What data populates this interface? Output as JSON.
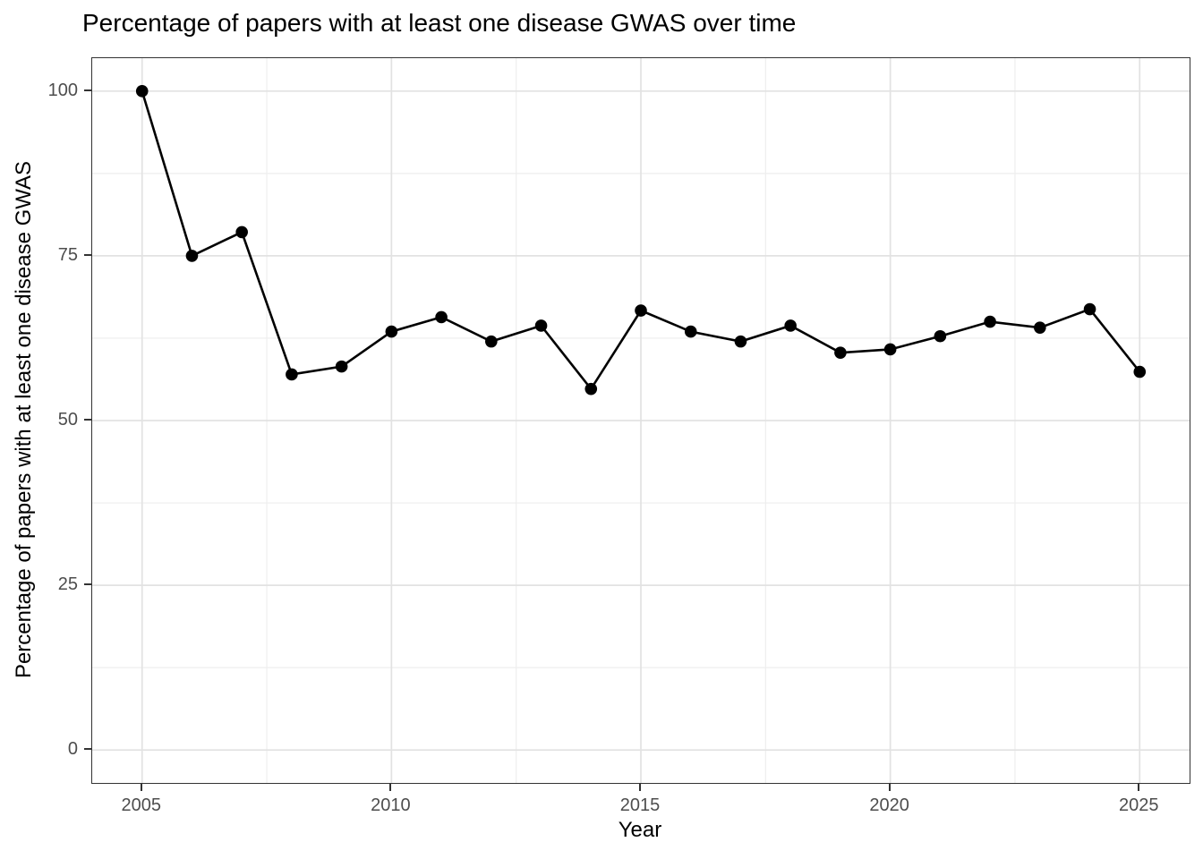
{
  "chart_data": {
    "type": "line",
    "title": "Percentage of papers with at least one disease GWAS over time",
    "xlabel": "Year",
    "ylabel": "Percentage of papers with at least one disease GWAS",
    "x": [
      2005,
      2006,
      2007,
      2008,
      2009,
      2010,
      2011,
      2012,
      2013,
      2014,
      2015,
      2016,
      2017,
      2018,
      2019,
      2020,
      2021,
      2022,
      2023,
      2024,
      2025
    ],
    "values": [
      100,
      75,
      78.6,
      57,
      58.2,
      63.5,
      65.7,
      62,
      64.4,
      54.8,
      66.7,
      63.5,
      62,
      64.4,
      60.3,
      60.8,
      62.8,
      65,
      64.1,
      66.9,
      57.4
    ],
    "xlim": [
      2004,
      2026
    ],
    "ylim": [
      -5,
      105
    ],
    "x_major_ticks": [
      2005,
      2010,
      2015,
      2020,
      2025
    ],
    "x_tick_labels": [
      "2005",
      "2010",
      "2015",
      "2020",
      "2025"
    ],
    "x_minor_ticks": [
      2007.5,
      2012.5,
      2017.5,
      2022.5
    ],
    "y_major_ticks": [
      0,
      25,
      50,
      75,
      100
    ],
    "y_tick_labels": [
      "0",
      "25",
      "50",
      "75",
      "100"
    ],
    "y_minor_ticks": [
      12.5,
      37.5,
      62.5,
      87.5
    ],
    "grid": true,
    "legend": false,
    "marker_radius": 6.8,
    "line_width": 2.6,
    "colors": {
      "line": "#000000",
      "point": "#000000",
      "grid_major": "#e2e2e2",
      "grid_minor": "#eeeeee",
      "panel_border": "#333333",
      "tick": "#333333",
      "tick_label": "#4d4d4d",
      "text": "#000000",
      "background": "#ffffff"
    }
  },
  "layout_note": "single line chart, no legend"
}
